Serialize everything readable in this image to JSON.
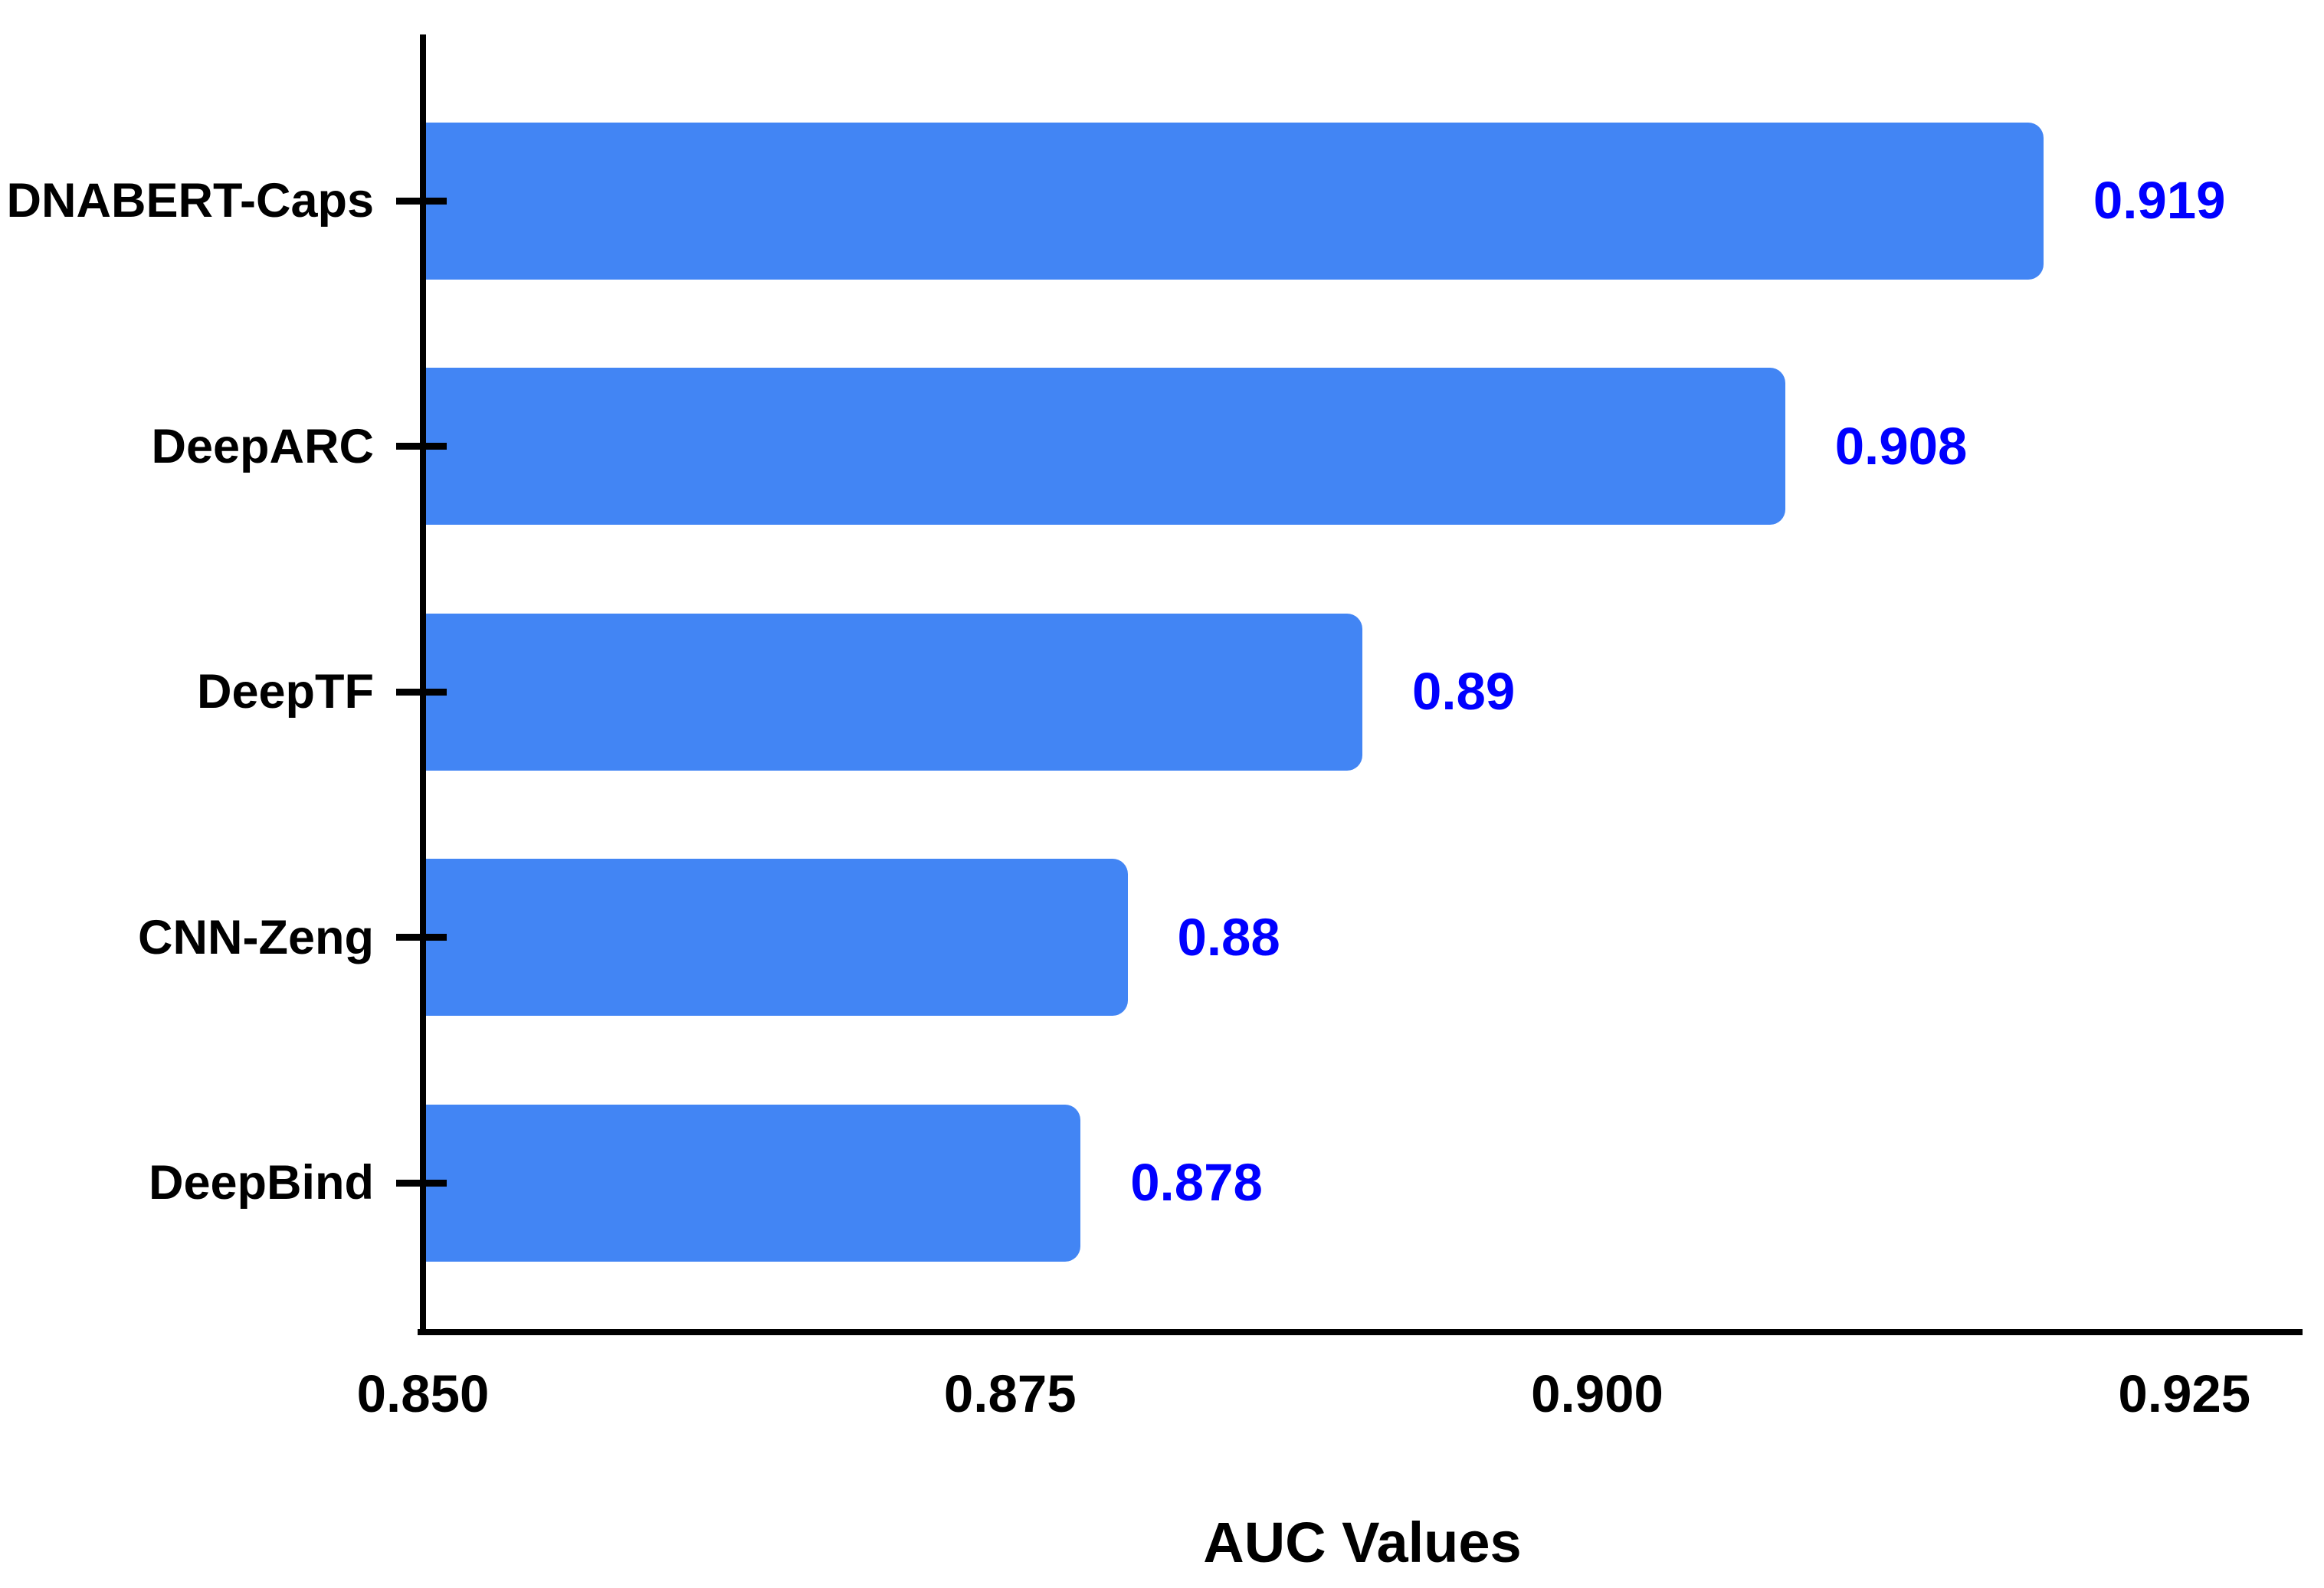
{
  "chart_data": {
    "type": "bar",
    "orientation": "horizontal",
    "title": "",
    "xlabel": "AUC Values",
    "ylabel": "",
    "categories": [
      "DNABERT-Caps",
      "DeepARC",
      "DeepTF",
      "CNN-Zeng",
      "DeepBind"
    ],
    "values": [
      0.919,
      0.908,
      0.89,
      0.88,
      0.878
    ],
    "value_labels": [
      "0.919",
      "0.908",
      "0.89",
      "0.88",
      "0.878"
    ],
    "xlim": [
      0.85,
      0.93
    ],
    "xticks": [
      0.85,
      0.875,
      0.9,
      0.925
    ],
    "xtick_labels": [
      "0.850",
      "0.875",
      "0.900",
      "0.925"
    ],
    "grid": false,
    "legend": "none",
    "colors": {
      "bar": "#4285F4",
      "value_label": "#0000FF",
      "axis": "#000000",
      "text": "#000000",
      "background": "#FFFFFF"
    }
  }
}
